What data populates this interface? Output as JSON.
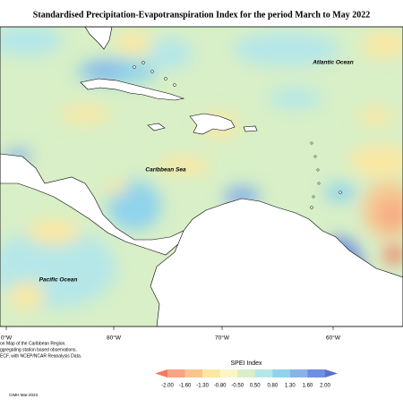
{
  "title": "Standardised Precipitation-Evapotranspiration Index for the period March to May 2022",
  "map": {
    "ocean_labels": [
      "Atlantic Ocean",
      "Caribbean Sea",
      "Pacific Ocean"
    ],
    "longitude_labels": [
      "0°W",
      "80°W",
      "70°W",
      "60°W"
    ]
  },
  "legend": {
    "title": "SPEI Index",
    "labels": [
      "-2.00",
      "-1.60",
      "-1.30",
      "-0.80",
      "-0.50",
      "0.50",
      "0.80",
      "1.30",
      "1.60",
      "2.00"
    ],
    "colors": [
      "#f07b5e",
      "#f5a582",
      "#f8c58f",
      "#fbe7a2",
      "#fdf6c4",
      "#d8efc7",
      "#b6e7e8",
      "#8fd3ec",
      "#87b3e8",
      "#6f8fe0",
      "#5b6fd8"
    ]
  },
  "footnote": [
    "on Map of the Caribbean Region.",
    "ggregating station based observations.",
    "ECF, with NCEP/NCAR Reanalysis Data."
  ],
  "credit": "CIMH Mar-2023"
}
